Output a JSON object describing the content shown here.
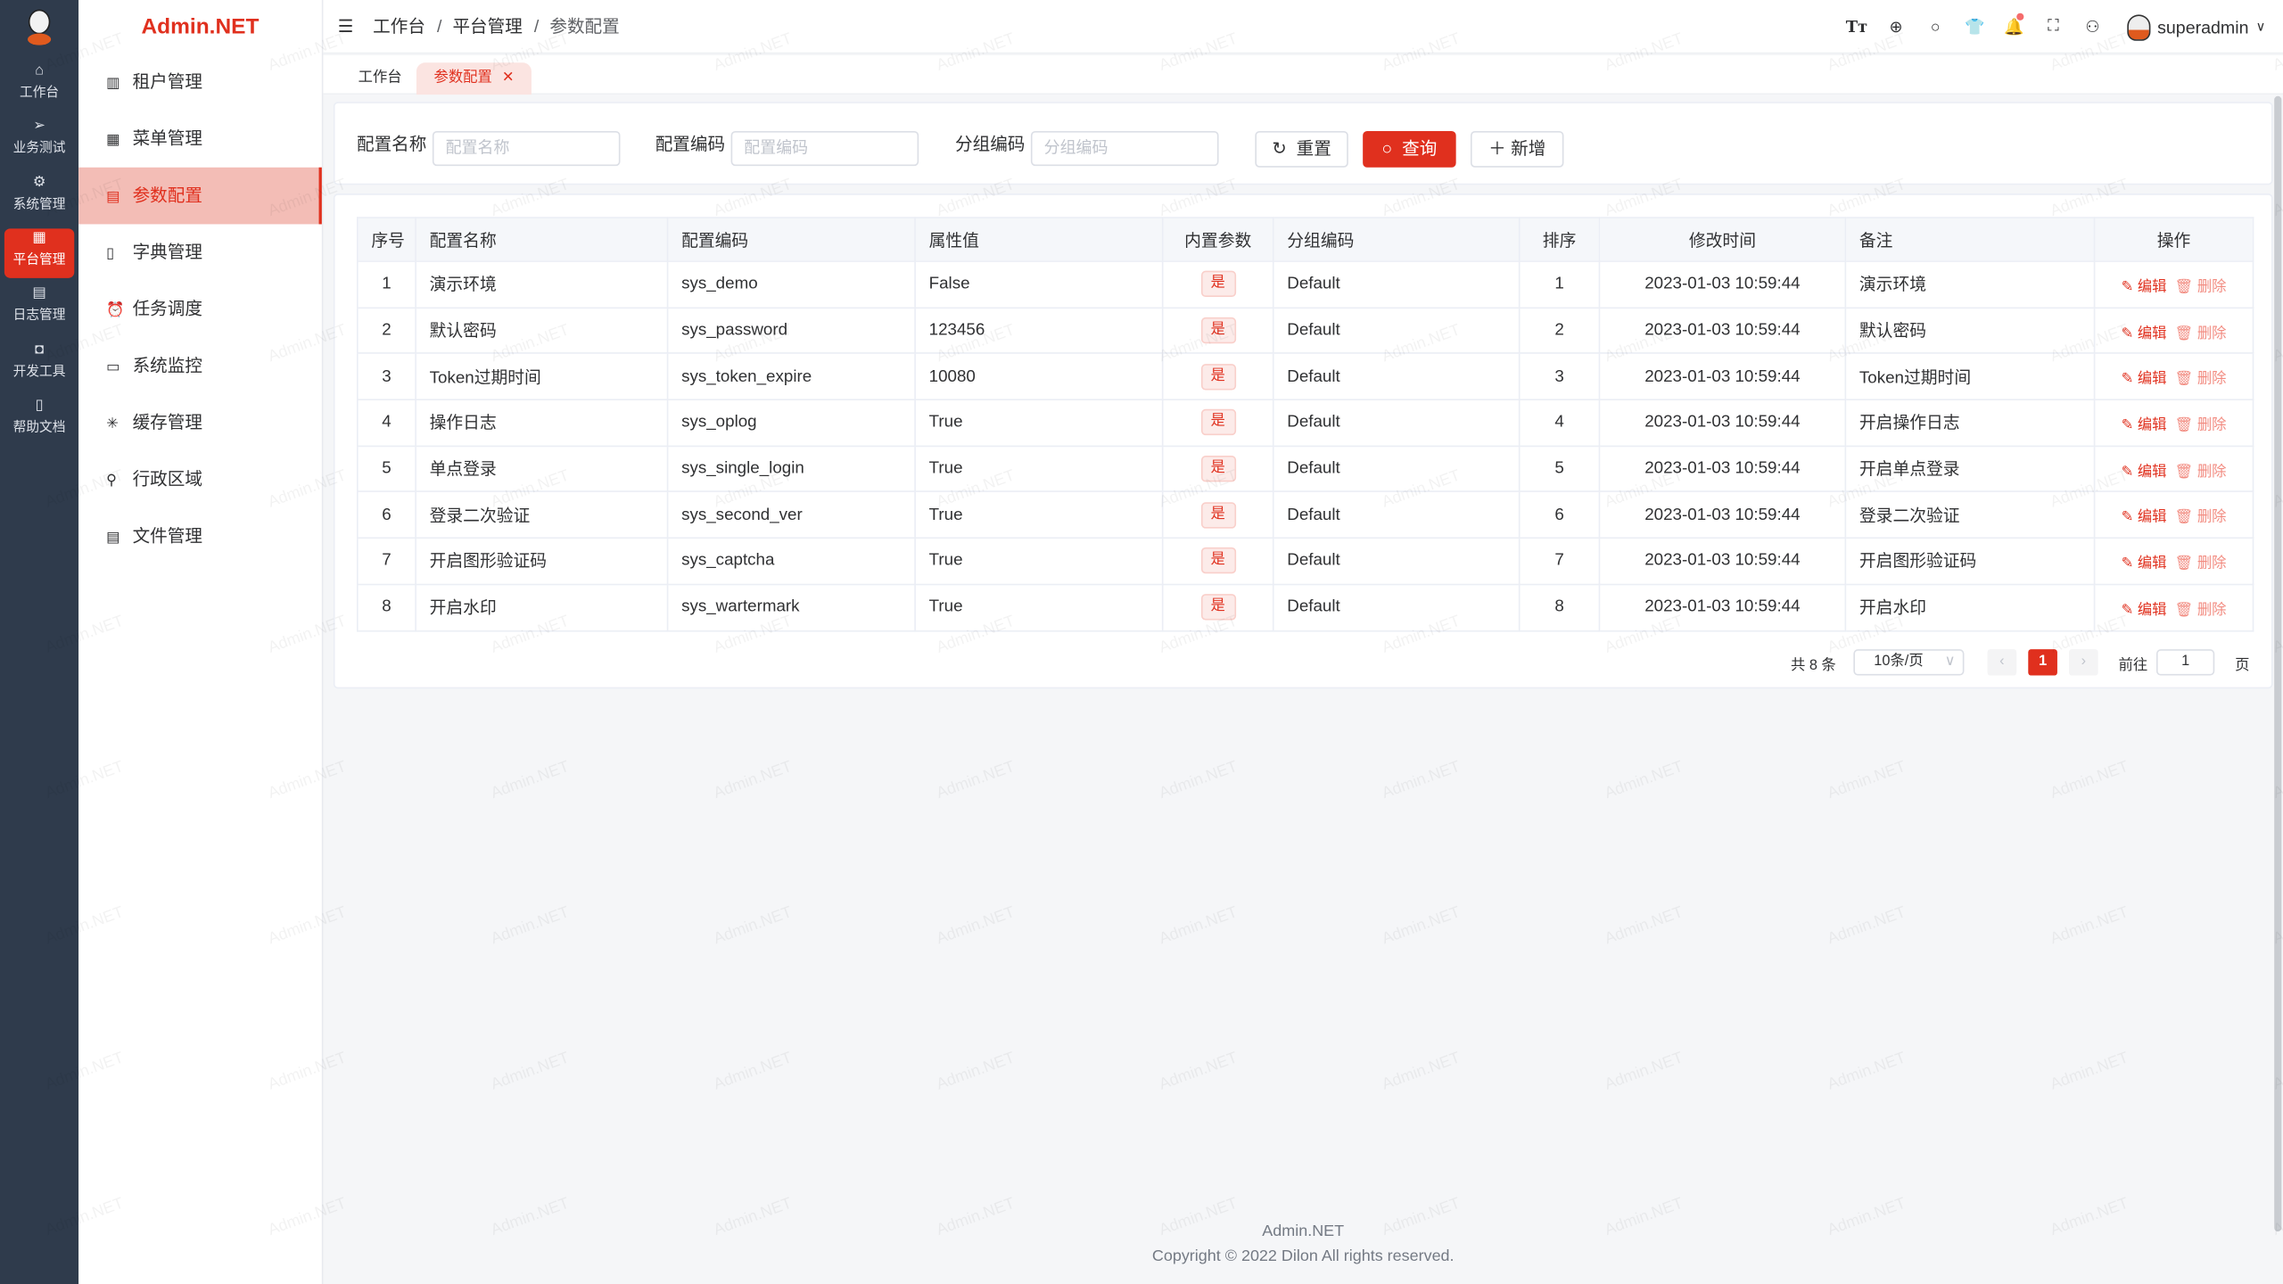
{
  "brand": "Admin.NET",
  "watermark": "Admin.NET",
  "rail": [
    {
      "icon": "home",
      "label": "工作台"
    },
    {
      "icon": "send",
      "label": "业务测试"
    },
    {
      "icon": "gear",
      "label": "系统管理"
    },
    {
      "icon": "grid",
      "label": "平台管理",
      "active": true
    },
    {
      "icon": "doc",
      "label": "日志管理"
    },
    {
      "icon": "chip",
      "label": "开发工具"
    },
    {
      "icon": "book",
      "label": "帮助文档"
    }
  ],
  "menu": [
    {
      "icon": "building",
      "label": "租户管理"
    },
    {
      "icon": "grid",
      "label": "菜单管理"
    },
    {
      "icon": "doc",
      "label": "参数配置",
      "active": true
    },
    {
      "icon": "book",
      "label": "字典管理"
    },
    {
      "icon": "alarm",
      "label": "任务调度"
    },
    {
      "icon": "monitor",
      "label": "系统监控"
    },
    {
      "icon": "loading",
      "label": "缓存管理"
    },
    {
      "icon": "location",
      "label": "行政区域"
    },
    {
      "icon": "file",
      "label": "文件管理"
    }
  ],
  "breadcrumb": [
    "工作台",
    "平台管理",
    "参数配置"
  ],
  "user": {
    "name": "superadmin"
  },
  "tabs": [
    {
      "label": "工作台"
    },
    {
      "label": "参数配置",
      "active": true
    }
  ],
  "search": {
    "fields": [
      {
        "label": "配置名称",
        "placeholder": "配置名称"
      },
      {
        "label": "配置编码",
        "placeholder": "配置编码"
      },
      {
        "label": "分组编码",
        "placeholder": "分组编码"
      }
    ],
    "reset": "重置",
    "query": "查询",
    "add": "新增"
  },
  "table": {
    "columns": [
      "序号",
      "配置名称",
      "配置编码",
      "属性值",
      "内置参数",
      "分组编码",
      "排序",
      "修改时间",
      "备注",
      "操作"
    ],
    "rows": [
      [
        "1",
        "演示环境",
        "sys_demo",
        "False",
        "是",
        "Default",
        "1",
        "2023-01-03 10:59:44",
        "演示环境"
      ],
      [
        "2",
        "默认密码",
        "sys_password",
        "123456",
        "是",
        "Default",
        "2",
        "2023-01-03 10:59:44",
        "默认密码"
      ],
      [
        "3",
        "Token过期时间",
        "sys_token_expire",
        "10080",
        "是",
        "Default",
        "3",
        "2023-01-03 10:59:44",
        "Token过期时间"
      ],
      [
        "4",
        "操作日志",
        "sys_oplog",
        "True",
        "是",
        "Default",
        "4",
        "2023-01-03 10:59:44",
        "开启操作日志"
      ],
      [
        "5",
        "单点登录",
        "sys_single_login",
        "True",
        "是",
        "Default",
        "5",
        "2023-01-03 10:59:44",
        "开启单点登录"
      ],
      [
        "6",
        "登录二次验证",
        "sys_second_ver",
        "True",
        "是",
        "Default",
        "6",
        "2023-01-03 10:59:44",
        "登录二次验证"
      ],
      [
        "7",
        "开启图形验证码",
        "sys_captcha",
        "True",
        "是",
        "Default",
        "7",
        "2023-01-03 10:59:44",
        "开启图形验证码"
      ],
      [
        "8",
        "开启水印",
        "sys_wartermark",
        "True",
        "是",
        "Default",
        "8",
        "2023-01-03 10:59:44",
        "开启水印"
      ]
    ],
    "edit": "编辑",
    "delete": "删除"
  },
  "pagination": {
    "total": "共 8 条",
    "page_size": "10条/页",
    "current": "1",
    "goto": "前往",
    "goto_value": "1",
    "page_unit": "页"
  },
  "footer": {
    "line1": "Admin.NET",
    "line2": "Copyright © 2022 Dilon All rights reserved."
  },
  "colors": {
    "accent": "#e0301e",
    "rail": "#2f3b4c"
  }
}
